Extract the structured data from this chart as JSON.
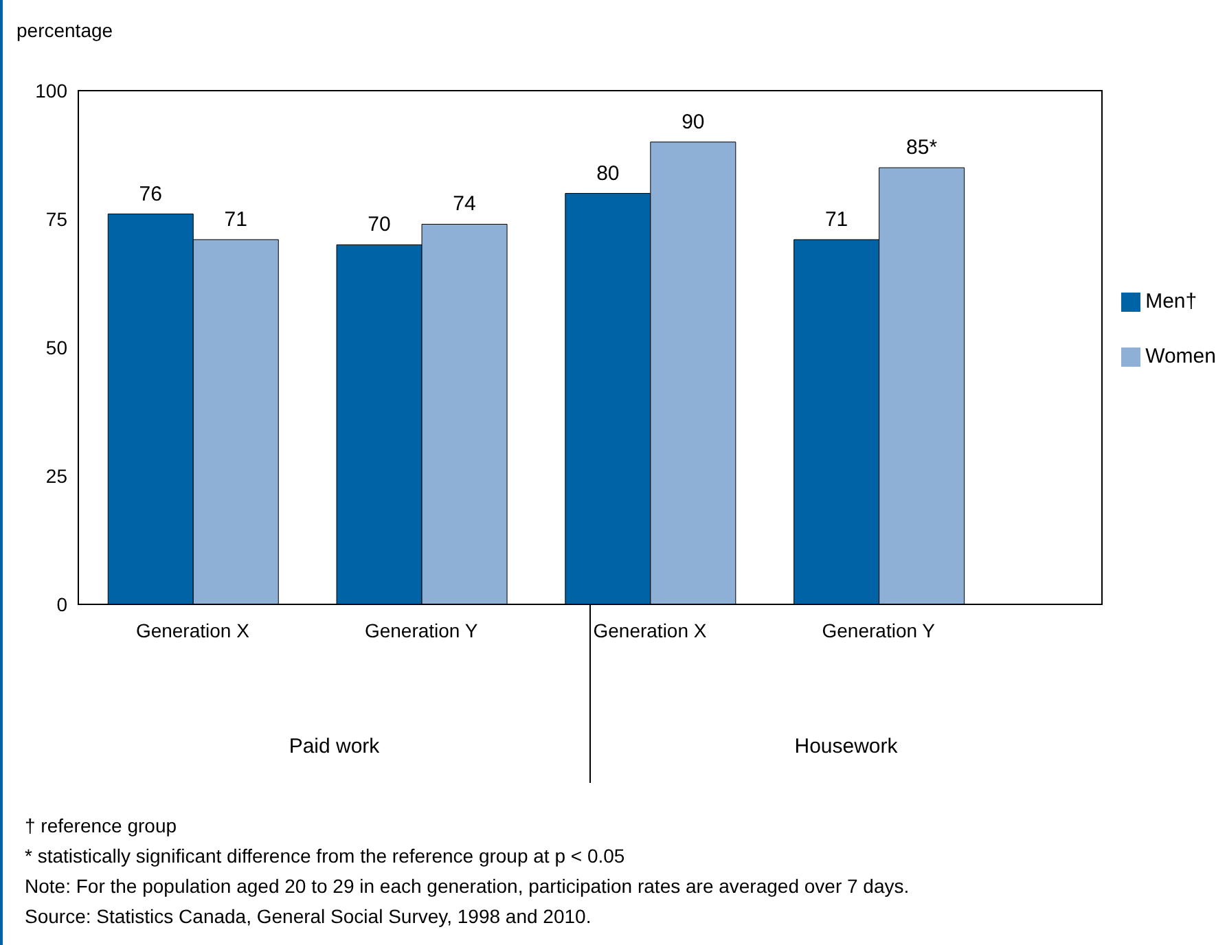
{
  "chart_data": {
    "type": "bar",
    "ylabel": "percentage",
    "categories": [
      "Generation  X",
      "Generation Y",
      "Generation  X",
      "Generation Y"
    ],
    "series": [
      {
        "name": "Men†",
        "color": "#0063a6",
        "values": [
          76,
          70,
          80,
          71
        ],
        "value_labels": [
          "76",
          "70",
          "80",
          "71"
        ]
      },
      {
        "name": "Women",
        "color": "#8eb0d6",
        "values": [
          71,
          74,
          90,
          85
        ],
        "value_labels": [
          "71",
          "74",
          "90",
          "85*"
        ]
      }
    ],
    "ylim": [
      0,
      100
    ],
    "yticks": [
      0,
      25,
      50,
      75,
      100
    ],
    "grid": false,
    "legend": "right",
    "annotations": [
      "Paid work",
      "Housework",
      "† reference group",
      "* statistically significant  difference from the reference group at p < 0.05",
      "Note: For the population aged 20 to 29 in each generation, participation rates are averaged over 7 days.",
      "Source: Statistics Canada, General Social Survey, 1998 and 2010."
    ]
  }
}
